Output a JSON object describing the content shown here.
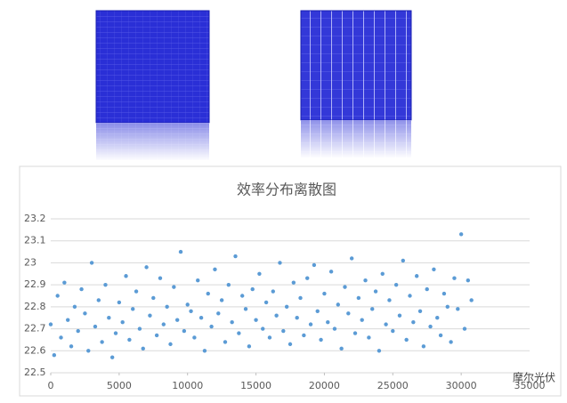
{
  "chart_data": {
    "type": "scatter",
    "title": "效率分布离散图",
    "x": [
      0,
      250,
      500,
      750,
      1000,
      1250,
      1500,
      1750,
      2000,
      2250,
      2500,
      2750,
      3000,
      3250,
      3500,
      3750,
      4000,
      4250,
      4500,
      4750,
      5000,
      5250,
      5500,
      5750,
      6000,
      6250,
      6500,
      6750,
      7000,
      7250,
      7500,
      7750,
      8000,
      8250,
      8500,
      8750,
      9000,
      9250,
      9500,
      9750,
      10000,
      10250,
      10500,
      10750,
      11000,
      11250,
      11500,
      11750,
      12000,
      12250,
      12500,
      12750,
      13000,
      13250,
      13500,
      13750,
      14000,
      14250,
      14500,
      14750,
      15000,
      15250,
      15500,
      15750,
      16000,
      16250,
      16500,
      16750,
      17000,
      17250,
      17500,
      17750,
      18000,
      18250,
      18500,
      18750,
      19000,
      19250,
      19500,
      19750,
      20000,
      20250,
      20500,
      20750,
      21000,
      21250,
      21500,
      21750,
      22000,
      22250,
      22500,
      22750,
      23000,
      23250,
      23500,
      23750,
      24000,
      24250,
      24500,
      24750,
      25000,
      25250,
      25500,
      25750,
      26000,
      26250,
      26500,
      26750,
      27000,
      27250,
      27500,
      27750,
      28000,
      28250,
      28500,
      28750,
      29000,
      29250,
      29500,
      29750,
      30000,
      30250,
      30500,
      30750
    ],
    "values": [
      22.72,
      22.58,
      22.85,
      22.66,
      22.91,
      22.74,
      22.62,
      22.8,
      22.69,
      22.88,
      22.77,
      22.6,
      23.0,
      22.71,
      22.83,
      22.64,
      22.9,
      22.75,
      22.57,
      22.68,
      22.82,
      22.73,
      22.94,
      22.65,
      22.79,
      22.87,
      22.7,
      22.61,
      22.98,
      22.76,
      22.84,
      22.67,
      22.93,
      22.72,
      22.8,
      22.63,
      22.89,
      22.74,
      23.05,
      22.69,
      22.81,
      22.78,
      22.66,
      22.92,
      22.75,
      22.6,
      22.86,
      22.71,
      22.97,
      22.77,
      22.83,
      22.64,
      22.9,
      22.73,
      23.03,
      22.68,
      22.85,
      22.79,
      22.62,
      22.88,
      22.74,
      22.95,
      22.7,
      22.82,
      22.66,
      22.87,
      22.76,
      23.0,
      22.69,
      22.8,
      22.63,
      22.91,
      22.75,
      22.84,
      22.67,
      22.93,
      22.72,
      22.99,
      22.78,
      22.65,
      22.86,
      22.73,
      22.96,
      22.7,
      22.81,
      22.61,
      22.89,
      22.77,
      23.02,
      22.68,
      22.84,
      22.74,
      22.92,
      22.66,
      22.79,
      22.87,
      22.6,
      22.95,
      22.72,
      22.83,
      22.69,
      22.9,
      22.76,
      23.01,
      22.65,
      22.85,
      22.73,
      22.94,
      22.78,
      22.62,
      22.88,
      22.71,
      22.97,
      22.75,
      22.67,
      22.86,
      22.8,
      22.64,
      22.93,
      22.79,
      23.13,
      22.7,
      22.92,
      22.83
    ],
    "color": "#5b9bd5",
    "xlim": [
      0,
      35000
    ],
    "xticks": [
      0,
      5000,
      10000,
      15000,
      20000,
      25000,
      30000,
      35000
    ],
    "ylim": [
      22.5,
      23.2
    ],
    "yticks": [
      22.5,
      22.6,
      22.7,
      22.8,
      22.9,
      23,
      23.1,
      23.2
    ],
    "grid": true
  },
  "watermark": "摩尔光伏"
}
